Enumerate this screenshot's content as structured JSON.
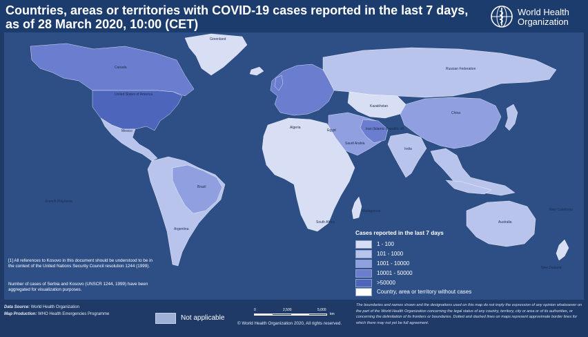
{
  "title": {
    "line1": "Countries, areas or territories with COVID-19  cases reported in the last 7 days,",
    "line2": "as of 28 March 2020, 10:00 (CET)"
  },
  "logo": {
    "line1": "World Health",
    "line2": "Organization"
  },
  "colors": {
    "header": "#1d3c6e",
    "ocean": "#2d4f86",
    "class_1": "#d8def3",
    "class_2": "#b9c4ec",
    "class_3": "#8f9fdf",
    "class_4": "#6a7dcf",
    "class_5": "#4d66bb",
    "no_cases": "#ffffff",
    "not_applicable": "#9fb1d6"
  },
  "legend": {
    "title": "Cases reported in the last 7 days",
    "classes": [
      {
        "label": "1 - 100",
        "color": "#d8def3"
      },
      {
        "label": "101 - 1000",
        "color": "#b9c4ec"
      },
      {
        "label": "1001 - 10000",
        "color": "#8f9fdf"
      },
      {
        "label": "10001 - 50000",
        "color": "#6a7dcf"
      },
      {
        "label": ">50000",
        "color": "#4d66bb"
      }
    ],
    "no_cases_label": "Country, area or territory without cases"
  },
  "map_labels": {
    "greenland": "Greenland",
    "canada": "Canada",
    "usa": "United States of America",
    "mexico": "Mexico",
    "brazil": "Brazil",
    "argentina": "Argentina",
    "australia": "Australia",
    "china": "China",
    "india": "India",
    "russia": "Russian Federation",
    "iran": "Iran (Islamic Republic of)",
    "south_africa": "South Africa",
    "new_zealand": "New Zealand",
    "new_caledonia": "New Caledonia",
    "french_polynesia": "French Polynesia",
    "madagascar": "Madagascar",
    "kazakhstan": "Kazakhstan",
    "algeria": "Algeria",
    "egypt": "Egypt",
    "saudi_arabia": "Saudi Arabia"
  },
  "notes": {
    "kosovo": "[1] All references to Kosovo in this document should be understood to be in the context of the United Nations Security Council resolution 1244 (1999).",
    "serbia": "Number of cases of Serbia and Kosovo (UNSCR 1244, 1999) have been aggregated for visualization purposes."
  },
  "footer": {
    "data_source_label": "Data Source:",
    "data_source": "World Health Organization",
    "map_production_label": "Map Production:",
    "map_production": "WHO Health Emergencies Programme",
    "not_applicable": "Not applicable",
    "scale_ticks": [
      "0",
      "2,500",
      "5,000"
    ],
    "scale_unit": "km",
    "copyright": "© World Health Organization 2020, All rights reserved.",
    "disclaimer": "The boundaries and names shown and the designations used on this map do not imply the expression of any opinion whatsoever on the part of the World Health Organization concerning the legal status of any country, territory, city or area or of its authorities, or concerning the delimitation of its frontiers or boundaries. Dotted and dashed lines on maps represent approximate border lines for which there may not yet be full agreement."
  }
}
